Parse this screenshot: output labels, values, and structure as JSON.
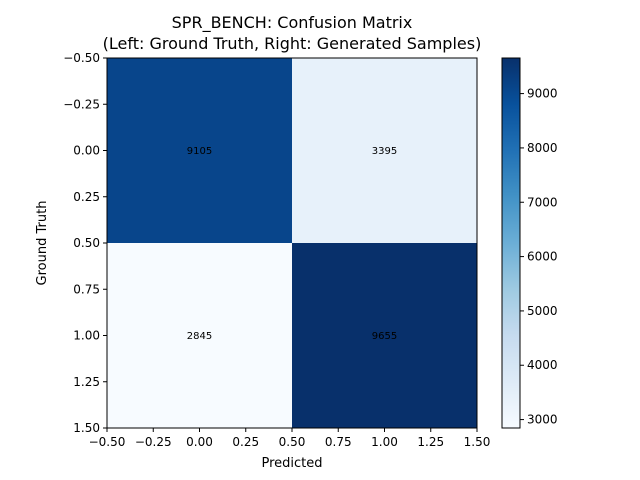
{
  "chart_data": {
    "type": "heatmap",
    "title": "SPR_BENCH: Confusion Matrix",
    "subtitle": "(Left: Ground Truth, Right: Generated Samples)",
    "xlabel": "Predicted",
    "ylabel": "Ground Truth",
    "xlim": [
      -0.5,
      1.5
    ],
    "ylim": [
      1.5,
      -0.5
    ],
    "xticks": [
      "-0.50",
      "-0.25",
      "0.00",
      "0.25",
      "0.50",
      "0.75",
      "1.00",
      "1.25",
      "1.50"
    ],
    "yticks": [
      "-0.50",
      "-0.25",
      "0.00",
      "0.25",
      "0.50",
      "0.75",
      "1.00",
      "1.25",
      "1.50"
    ],
    "matrix": [
      [
        9105,
        3395
      ],
      [
        2845,
        9655
      ]
    ],
    "colormap": "Blues",
    "colorbar": {
      "min": 2845,
      "max": 9655,
      "ticks": [
        "3000",
        "4000",
        "5000",
        "6000",
        "7000",
        "8000",
        "9000"
      ]
    },
    "grid": false
  }
}
